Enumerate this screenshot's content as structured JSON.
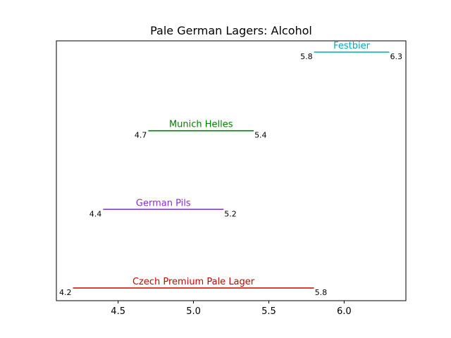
{
  "chart_data": {
    "type": "range",
    "title": "Pale German Lagers: Alcohol",
    "xlabel": "",
    "ylabel": "",
    "xlim": [
      4.09,
      6.41
    ],
    "xticks": [
      4.5,
      5.0,
      5.5,
      6.0
    ],
    "xtick_labels": [
      "4.5",
      "5.0",
      "5.5",
      "6.0"
    ],
    "grid": false,
    "legend": "none",
    "series": [
      {
        "name": "Czech Premium Pale Lager",
        "min": 4.2,
        "max": 5.8,
        "min_label": "4.2",
        "max_label": "5.8",
        "color": "#cc0000"
      },
      {
        "name": "German Pils",
        "min": 4.4,
        "max": 5.2,
        "min_label": "4.4",
        "max_label": "5.2",
        "color": "#8a2be2"
      },
      {
        "name": "Munich Helles",
        "min": 4.7,
        "max": 5.4,
        "min_label": "4.7",
        "max_label": "5.4",
        "color": "#008000"
      },
      {
        "name": "Festbier",
        "min": 5.8,
        "max": 6.3,
        "min_label": "5.8",
        "max_label": "6.3",
        "color": "#00aabb"
      }
    ]
  }
}
